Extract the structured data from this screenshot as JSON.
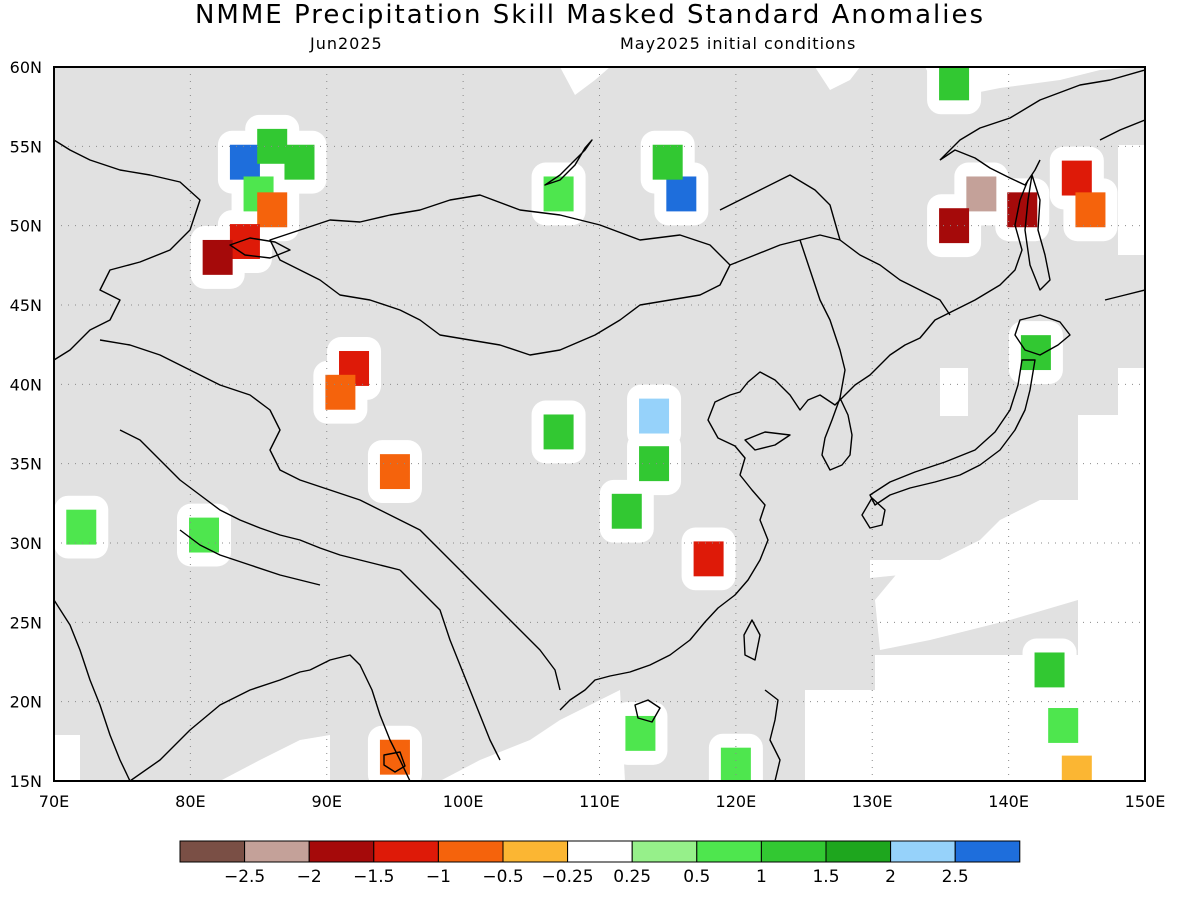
{
  "title": "NMME Precipitation Skill Masked Standard Anomalies",
  "subtitle_left": "Jun2025",
  "subtitle_right": "May2025 initial conditions",
  "map": {
    "lon_range": [
      70,
      150
    ],
    "lat_range": [
      15,
      60
    ],
    "lon_ticks": [
      "70E",
      "80E",
      "90E",
      "100E",
      "110E",
      "120E",
      "130E",
      "140E",
      "150E"
    ],
    "lat_ticks": [
      "15N",
      "20N",
      "25N",
      "30N",
      "35N",
      "40N",
      "45N",
      "50N",
      "55N",
      "60N"
    ],
    "grid": true,
    "colors": {
      "masked": "#e1e1e1",
      "ocean_nonskill": "#ffffff",
      "coastline": "#000000"
    },
    "anomaly_cells": [
      {
        "lon": 84,
        "lat": 54,
        "value": 2.7
      },
      {
        "lon": 86,
        "lat": 55,
        "value": 1.0
      },
      {
        "lon": 88,
        "lat": 54,
        "value": 1.2
      },
      {
        "lon": 85,
        "lat": 52,
        "value": 0.9
      },
      {
        "lon": 86,
        "lat": 51,
        "value": -0.7
      },
      {
        "lon": 84,
        "lat": 49,
        "value": -1.1
      },
      {
        "lon": 82,
        "lat": 48,
        "value": -1.6
      },
      {
        "lon": 92,
        "lat": 41,
        "value": -1.3
      },
      {
        "lon": 91,
        "lat": 39.5,
        "value": -1.0
      },
      {
        "lon": 95,
        "lat": 34.5,
        "value": -1.0
      },
      {
        "lon": 107,
        "lat": 37,
        "value": 1.1
      },
      {
        "lon": 114,
        "lat": 38,
        "value": 2.2
      },
      {
        "lon": 114,
        "lat": 35,
        "value": 1.2
      },
      {
        "lon": 112,
        "lat": 32,
        "value": 1.0
      },
      {
        "lon": 118,
        "lat": 29,
        "value": -1.4
      },
      {
        "lon": 107,
        "lat": 52,
        "value": 0.7
      },
      {
        "lon": 116,
        "lat": 52,
        "value": 2.7
      },
      {
        "lon": 115,
        "lat": 54,
        "value": 1.0
      },
      {
        "lon": 138,
        "lat": 52,
        "value": -2.2
      },
      {
        "lon": 136,
        "lat": 50,
        "value": -1.8
      },
      {
        "lon": 141,
        "lat": 51,
        "value": -1.6
      },
      {
        "lon": 145,
        "lat": 53,
        "value": -1.4
      },
      {
        "lon": 146,
        "lat": 51,
        "value": -0.7
      },
      {
        "lon": 136,
        "lat": 59,
        "value": 1.0
      },
      {
        "lon": 142,
        "lat": 42,
        "value": 1.0
      },
      {
        "lon": 143,
        "lat": 22,
        "value": 1.3
      },
      {
        "lon": 144,
        "lat": 18.5,
        "value": 0.6
      },
      {
        "lon": 145,
        "lat": 15.5,
        "value": -0.4
      },
      {
        "lon": 113,
        "lat": 18,
        "value": 0.8
      },
      {
        "lon": 120,
        "lat": 16,
        "value": 0.8
      },
      {
        "lon": 72,
        "lat": 31,
        "value": 0.8
      },
      {
        "lon": 81,
        "lat": 30.5,
        "value": 0.9
      },
      {
        "lon": 95,
        "lat": 16.5,
        "value": -0.6
      }
    ]
  },
  "colorbar": {
    "colors": [
      "#7a4f45",
      "#c4a199",
      "#a50a0a",
      "#de1a08",
      "#f5630c",
      "#fbb633",
      "#ffffff",
      "#96f08a",
      "#4ee64e",
      "#32c832",
      "#1ea61e",
      "#96d2fa",
      "#1e6edc"
    ],
    "labels": [
      "-2.5",
      "-2",
      "-1.5",
      "-1",
      "-0.5",
      "-0.25",
      "0.25",
      "0.5",
      "1",
      "1.5",
      "2",
      "2.5"
    ]
  }
}
